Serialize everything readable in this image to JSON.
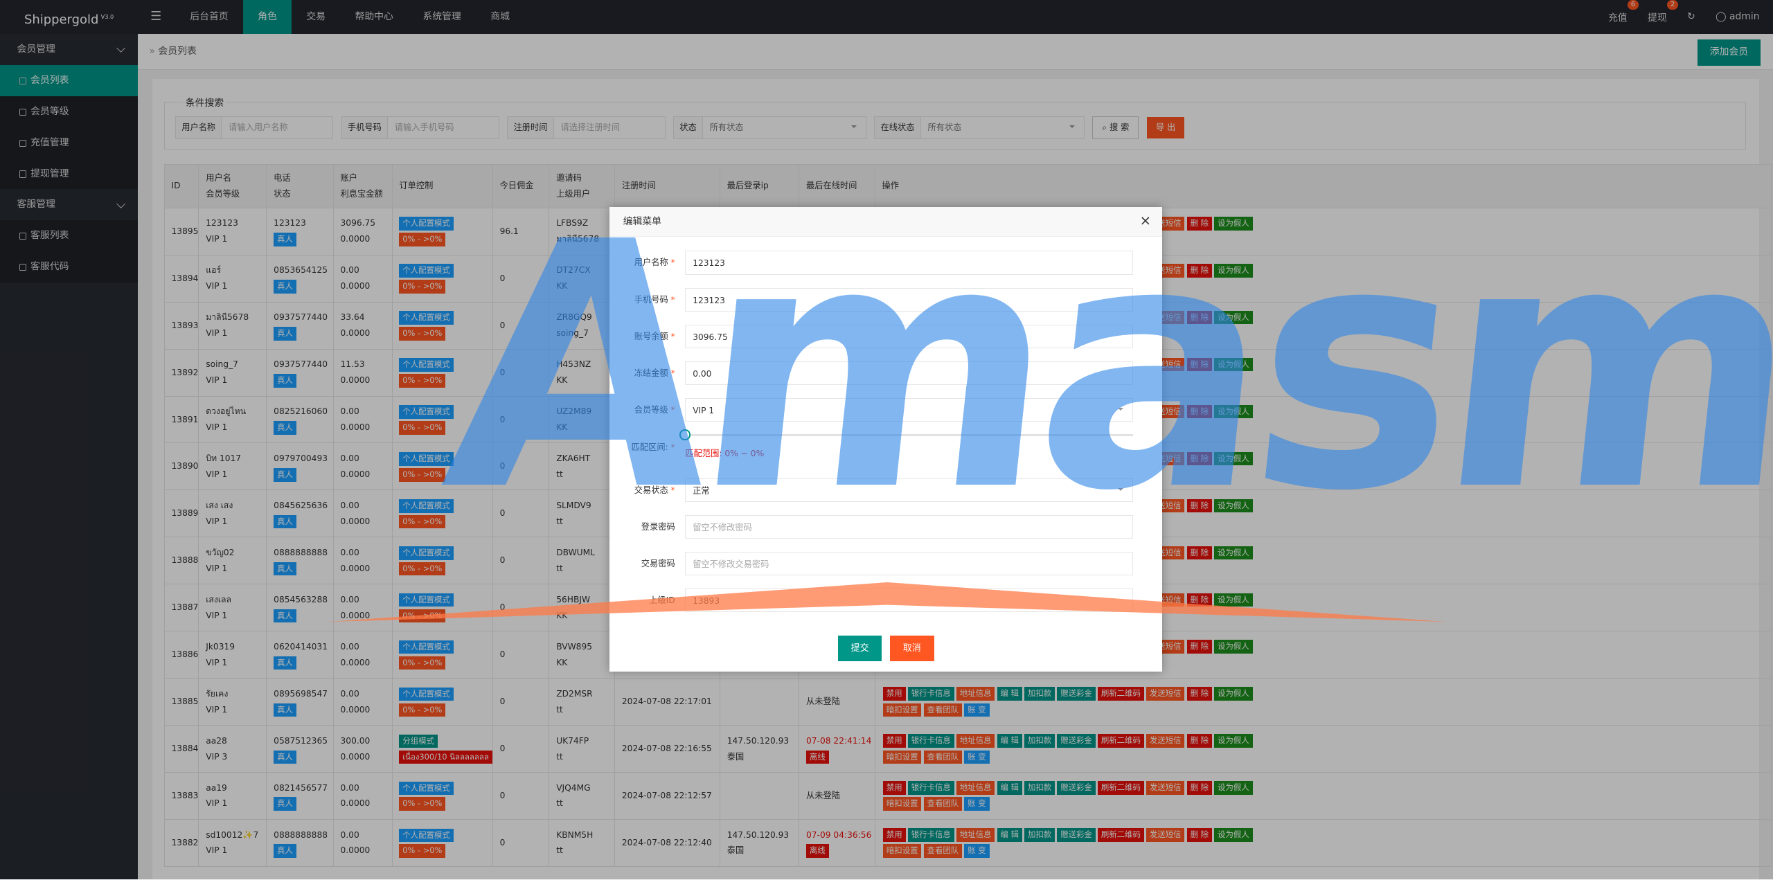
{
  "header": {
    "logo": "Shippergold",
    "version": "V3.0",
    "nav": [
      "后台首页",
      "角色",
      "交易",
      "帮助中心",
      "系统管理",
      "商城"
    ],
    "recharge": "充值",
    "recharge_badge": "6",
    "withdraw": "提现",
    "withdraw_badge": "2",
    "user": "admin"
  },
  "sidebar": [
    {
      "group": "会员管理",
      "items": [
        "会员列表",
        "会员等级",
        "充值管理",
        "提现管理"
      ]
    },
    {
      "group": "客服管理",
      "items": [
        "客服列表",
        "客服代码"
      ]
    }
  ],
  "breadcrumb": "会员列表",
  "add_button": "添加会员",
  "search": {
    "legend": "条件搜索",
    "fields": [
      {
        "label": "用户名称",
        "placeholder": "请输入用户名称"
      },
      {
        "label": "手机号码",
        "placeholder": "请输入手机号码"
      },
      {
        "label": "注册时间",
        "placeholder": "请选择注册时间"
      }
    ],
    "selects": [
      {
        "label": "状态",
        "value": "所有状态"
      },
      {
        "label": "在线状态",
        "value": "所有状态"
      }
    ],
    "search_button": "搜 索",
    "export_button": "导 出"
  },
  "table": {
    "headers": [
      [
        "ID"
      ],
      [
        "用户名",
        "会员等级"
      ],
      [
        "电话",
        "状态"
      ],
      [
        "账户",
        "利息宝金额"
      ],
      [
        "订单控制"
      ],
      [
        "今日佣金"
      ],
      [
        "邀请码",
        "上级用户"
      ],
      [
        "注册时间"
      ],
      [
        "最后登录ip"
      ],
      [
        "最后在线时间"
      ],
      [
        "操作"
      ]
    ],
    "ops": [
      [
        "禁用",
        "银行卡信息",
        "地址信息",
        "编 辑",
        "加扣款",
        "赠送彩金",
        "刷新二维码",
        "发送短信",
        "删 除",
        "设为假人"
      ],
      [
        "暗扣设置",
        "查看团队",
        "账 变"
      ]
    ],
    "rows": [
      {
        "id": "13895",
        "user": "123123",
        "level": "VIP 1",
        "phone": "123123",
        "status": "真人",
        "balance": "3096.75",
        "interest": "0.0000",
        "mode": "个人配置模式",
        "range": "0% - >0%",
        "commission": "96.1",
        "code": "LFBS9Z",
        "parent": "มาลินี5678"
      },
      {
        "id": "13894",
        "user": "แอร์",
        "level": "VIP 1",
        "phone": "0853654125",
        "status": "真人",
        "balance": "0.00",
        "interest": "0.0000",
        "mode": "个人配置模式",
        "range": "0% - >0%",
        "commission": "0",
        "code": "DT27CX",
        "parent": "KK"
      },
      {
        "id": "13893",
        "user": "มาลินี5678",
        "level": "VIP 1",
        "phone": "0937577440",
        "status": "真人",
        "balance": "33.64",
        "interest": "0.0000",
        "mode": "个人配置模式",
        "range": "0% - >0%",
        "commission": "0",
        "code": "ZR8GQ9",
        "parent": "soing_7"
      },
      {
        "id": "13892",
        "user": "soing_7",
        "level": "VIP 1",
        "phone": "0937577440",
        "status": "真人",
        "balance": "11.53",
        "interest": "0.0000",
        "mode": "个人配置模式",
        "range": "0% - >0%",
        "commission": "0",
        "code": "H453NZ",
        "parent": "KK"
      },
      {
        "id": "13891",
        "user": "ดวงอยู่ไหน",
        "level": "VIP 1",
        "phone": "0825216060",
        "status": "真人",
        "balance": "0.00",
        "interest": "0.0000",
        "mode": "个人配置模式",
        "range": "0% - >0%",
        "commission": "0",
        "code": "UZ2M89",
        "parent": "KK"
      },
      {
        "id": "13890",
        "user": "บิท 1017",
        "level": "VIP 1",
        "phone": "0979700493",
        "status": "真人",
        "balance": "0.00",
        "interest": "0.0000",
        "mode": "个人配置模式",
        "range": "0% - >0%",
        "commission": "0",
        "code": "ZKA6HT",
        "parent": "tt"
      },
      {
        "id": "13889",
        "user": "เสง เสง",
        "level": "VIP 1",
        "phone": "0845625636",
        "status": "真人",
        "balance": "0.00",
        "interest": "0.0000",
        "mode": "个人配置模式",
        "range": "0% - >0%",
        "commission": "0",
        "code": "SLMDV9",
        "parent": "tt"
      },
      {
        "id": "13888",
        "user": "ขวัญ02",
        "level": "VIP 1",
        "phone": "0888888888",
        "status": "真人",
        "balance": "0.00",
        "interest": "0.0000",
        "mode": "个人配置模式",
        "range": "0% - >0%",
        "commission": "0",
        "code": "DBWUML",
        "parent": "tt"
      },
      {
        "id": "13887",
        "user": "เสงเลล",
        "level": "VIP 1",
        "phone": "0854563288",
        "status": "真人",
        "balance": "0.00",
        "interest": "0.0000",
        "mode": "个人配置模式",
        "range": "0% - >0%",
        "commission": "0",
        "code": "56HBJW",
        "parent": "KK"
      },
      {
        "id": "13886",
        "user": "Jk0319",
        "level": "VIP 1",
        "phone": "0620414031",
        "status": "真人",
        "balance": "0.00",
        "interest": "0.0000",
        "mode": "个人配置模式",
        "range": "0% - >0%",
        "commission": "0",
        "code": "BVW895",
        "parent": "KK"
      },
      {
        "id": "13885",
        "user": "รัยเคง",
        "level": "VIP 1",
        "phone": "0895698547",
        "status": "真人",
        "balance": "0.00",
        "interest": "0.0000",
        "mode": "个人配置模式",
        "range": "0% - >0%",
        "commission": "0",
        "code": "ZD2MSR",
        "parent": "tt",
        "reg_time": "2024-07-08 22:17:01",
        "last_online": "从未登陆"
      },
      {
        "id": "13884",
        "user": "aa28",
        "level": "VIP 3",
        "phone": "0587512365",
        "status": "真人",
        "balance": "300.00",
        "interest": "0.0000",
        "mode": "分组模式",
        "range": "เนื่อง300/10 นิลลลลลลล",
        "commission": "0",
        "code": "UK74FP",
        "parent": "tt",
        "reg_time": "2024-07-08 22:16:55",
        "ip": "147.50.120.93",
        "ip_region": "泰国",
        "last_online": "07-08 22:41:14",
        "online_status": "离线"
      },
      {
        "id": "13883",
        "user": "aa19",
        "level": "VIP 1",
        "phone": "0821456577",
        "status": "真人",
        "balance": "0.00",
        "interest": "0.0000",
        "mode": "个人配置模式",
        "range": "0% - >0%",
        "commission": "0",
        "code": "VJQ4MG",
        "parent": "tt",
        "reg_time": "2024-07-08 22:12:57",
        "last_online": "从未登陆"
      },
      {
        "id": "13882",
        "user": "sd10012✨7",
        "level": "VIP 1",
        "phone": "0888888888",
        "status": "真人",
        "balance": "0.00",
        "interest": "0.0000",
        "mode": "个人配置模式",
        "range": "0% - >0%",
        "commission": "0",
        "code": "KBNM5H",
        "parent": "tt",
        "reg_time": "2024-07-08 22:12:40",
        "ip": "147.50.120.93",
        "ip_region": "泰国",
        "last_online": "07-09 04:36:56",
        "online_status": "离线"
      }
    ]
  },
  "modal": {
    "title": "编辑菜单",
    "fields": [
      {
        "label": "用户名称",
        "value": "123123",
        "required": true
      },
      {
        "label": "手机号码",
        "value": "123123",
        "required": true
      },
      {
        "label": "账号余额",
        "value": "3096.75",
        "required": true
      },
      {
        "label": "冻结金额",
        "value": "0.00",
        "required": true
      },
      {
        "label": "会员等级",
        "value": "VIP 1",
        "required": true,
        "select": true
      }
    ],
    "range_label": "匹配区间:",
    "range_text": "匹配范围:",
    "range_value": "0% ~ 0%",
    "fields2": [
      {
        "label": "交易状态",
        "value": "正常",
        "required": true,
        "select": true
      },
      {
        "label": "登录密码",
        "placeholder": "留空不修改密码"
      },
      {
        "label": "交易密码",
        "placeholder": "留空不修改交易密码"
      },
      {
        "label": "上级ID",
        "value": "13893"
      }
    ],
    "submit": "提交",
    "cancel": "取消"
  },
  "watermark": "Amasms"
}
